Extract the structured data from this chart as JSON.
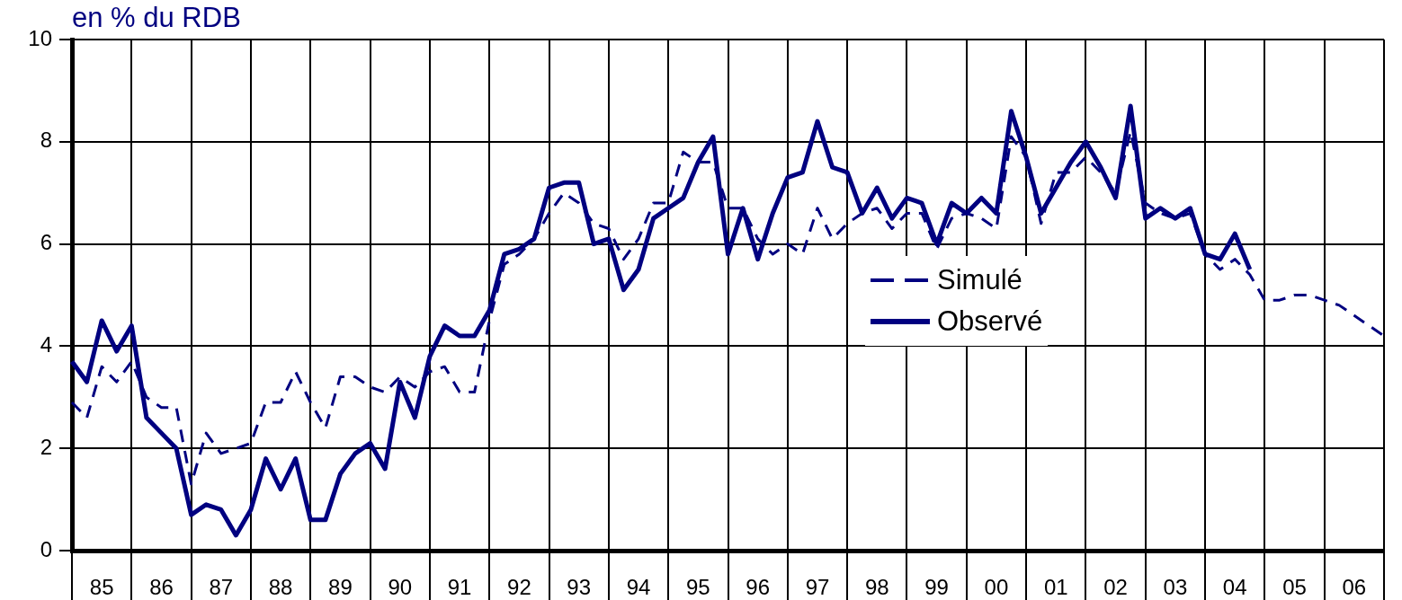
{
  "chart_data": {
    "type": "line",
    "ylabel": "en % du RDB",
    "categories": [
      null,
      null,
      "85",
      null,
      null,
      null,
      "86",
      null,
      null,
      null,
      "87",
      null,
      null,
      null,
      "88",
      null,
      null,
      null,
      "89",
      null,
      null,
      null,
      "90",
      null,
      null,
      null,
      "91",
      null,
      null,
      null,
      "92",
      null,
      null,
      null,
      "93",
      null,
      null,
      null,
      "94",
      null,
      null,
      null,
      "95",
      null,
      null,
      null,
      "96",
      null,
      null,
      null,
      "97",
      null,
      null,
      null,
      "98",
      null,
      null,
      null,
      "99",
      null,
      null,
      null,
      "00",
      null,
      null,
      null,
      "01",
      null,
      null,
      null,
      "02",
      null,
      null,
      null,
      "03",
      null,
      null,
      null,
      "04",
      null,
      null,
      null,
      "05",
      null,
      null,
      null,
      "06",
      null,
      null
    ],
    "series": [
      {
        "name": "Simulé",
        "color": "#000080",
        "line_style": "dashed",
        "values": [
          2.9,
          2.6,
          3.6,
          3.3,
          3.7,
          3.0,
          2.8,
          2.8,
          1.3,
          2.3,
          1.9,
          2.0,
          2.1,
          2.9,
          2.9,
          3.5,
          2.9,
          2.4,
          3.4,
          3.4,
          3.2,
          3.1,
          3.4,
          3.2,
          3.5,
          3.6,
          3.1,
          3.1,
          4.5,
          5.6,
          5.8,
          6.1,
          6.6,
          7.0,
          6.8,
          6.4,
          6.3,
          5.7,
          6.1,
          6.8,
          6.8,
          7.8,
          7.6,
          7.6,
          6.7,
          6.7,
          6.1,
          5.8,
          6.0,
          5.8,
          6.7,
          6.1,
          6.4,
          6.6,
          6.7,
          6.3,
          6.6,
          6.6,
          5.9,
          6.5,
          6.6,
          6.5,
          6.3,
          8.1,
          7.7,
          6.4,
          7.4,
          7.4,
          7.7,
          7.4,
          7.0,
          8.2,
          6.8,
          6.6,
          6.5,
          6.6,
          5.8,
          5.5,
          5.7,
          5.4,
          4.9,
          4.9,
          5.0,
          5.0,
          4.9,
          4.8,
          4.6,
          4.4,
          4.2
        ]
      },
      {
        "name": "Observé",
        "color": "#000080",
        "line_style": "solid",
        "values": [
          3.7,
          3.3,
          4.5,
          3.9,
          4.4,
          2.6,
          2.3,
          2.0,
          0.7,
          0.9,
          0.8,
          0.3,
          0.8,
          1.8,
          1.2,
          1.8,
          0.6,
          0.6,
          1.5,
          1.9,
          2.1,
          1.6,
          3.3,
          2.6,
          3.8,
          4.4,
          4.2,
          4.2,
          4.7,
          5.8,
          5.9,
          6.1,
          7.1,
          7.2,
          7.2,
          6.0,
          6.1,
          5.1,
          5.5,
          6.5,
          6.7,
          6.9,
          7.6,
          8.1,
          5.8,
          6.7,
          5.7,
          6.6,
          7.3,
          7.4,
          8.4,
          7.5,
          7.4,
          6.6,
          7.1,
          6.5,
          6.9,
          6.8,
          6.0,
          6.8,
          6.6,
          6.9,
          6.6,
          8.6,
          7.7,
          6.6,
          7.1,
          7.6,
          8.0,
          7.5,
          6.9,
          8.7,
          6.5,
          6.7,
          6.5,
          6.7,
          5.8,
          5.7,
          6.2,
          5.5,
          null,
          null,
          null,
          null,
          null,
          null,
          null,
          null,
          null
        ]
      }
    ],
    "ylim": [
      0,
      10
    ],
    "yticks": [
      0,
      2,
      4,
      6,
      8,
      10
    ],
    "grid": true,
    "legend": "right",
    "marker": "none"
  }
}
